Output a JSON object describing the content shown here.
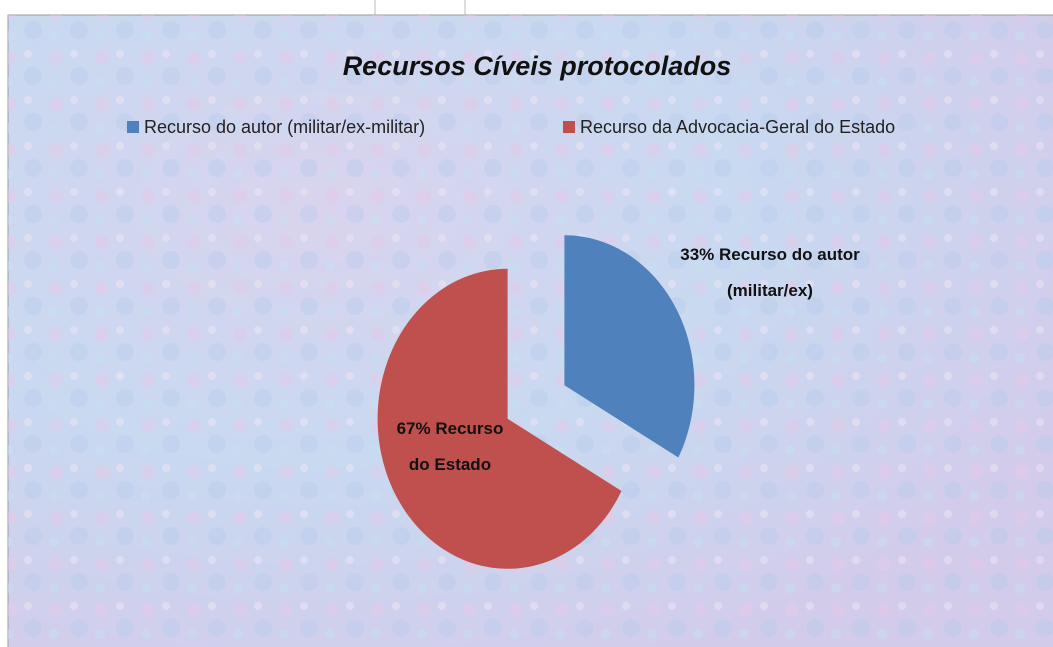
{
  "chart_data": {
    "type": "pie",
    "title": "Recursos Cíveis protocolados",
    "categories": [
      "Recurso do autor (militar/ex-militar)",
      "Recurso da Advocacia-Geral do Estado"
    ],
    "values": [
      33,
      67
    ],
    "value_labels": [
      "33%",
      "67%"
    ],
    "data_label_names": [
      "Recurso do autor (militar/ex)",
      "Recurso do Estado"
    ],
    "colors": [
      "#4f81bd",
      "#c0504d"
    ],
    "legend": "top"
  }
}
